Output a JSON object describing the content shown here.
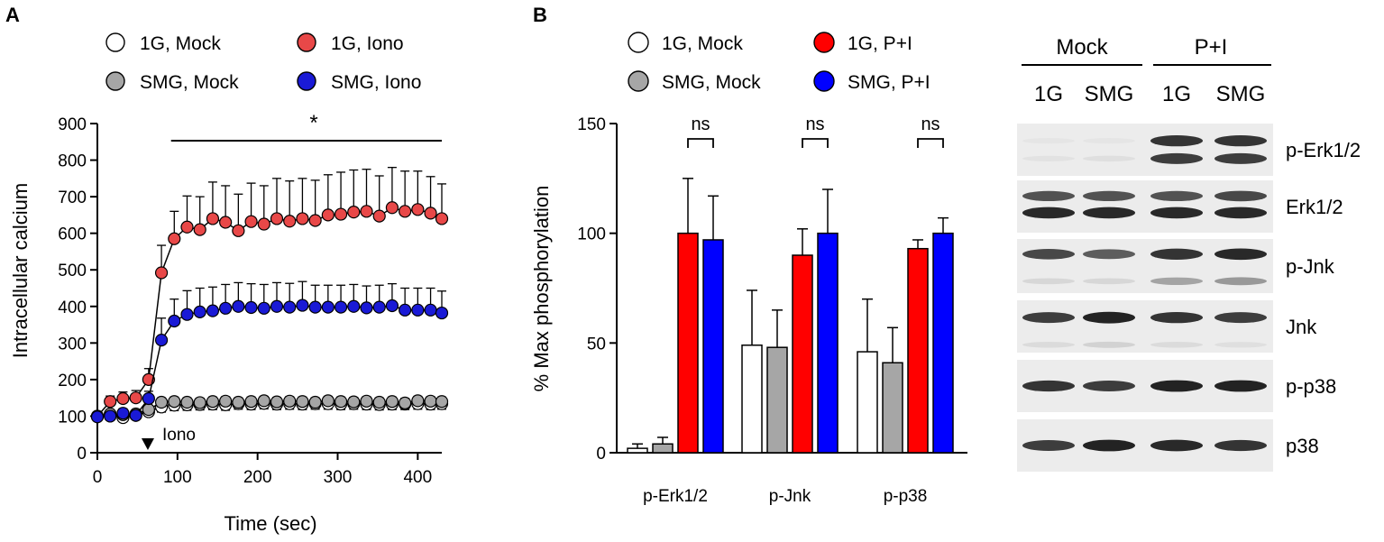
{
  "panels": {
    "a_letter": "A",
    "b_letter": "B"
  },
  "colors": {
    "mock_1g": "#ffffff",
    "mock_smg": "#a6a6a6",
    "stim_1g_marker": "#e84848",
    "stim_smg_marker": "#1a1ad6",
    "stim_1g_bar": "#ff0000",
    "stim_smg_bar": "#0000ff",
    "axis": "#000000"
  },
  "chart_data": [
    {
      "type": "line",
      "panel": "A",
      "title": "",
      "xlabel": "Time (sec)",
      "ylabel": "Intracellular calcium",
      "xlim": [
        0,
        430
      ],
      "ylim": [
        0,
        900
      ],
      "xticks": [
        0,
        100,
        200,
        300,
        400
      ],
      "yticks": [
        0,
        100,
        200,
        300,
        400,
        500,
        600,
        700,
        800,
        900
      ],
      "annotations": {
        "significance": "*",
        "significance_range": [
          92,
          430
        ],
        "stimulus_label": "Iono",
        "stimulus_time": 63
      },
      "legend": {
        "placement": "top",
        "entries": [
          {
            "label": "1G, Mock",
            "color_key": "mock_1g"
          },
          {
            "label": "1G, Iono",
            "color_key": "stim_1g_marker"
          },
          {
            "label": "SMG, Mock",
            "color_key": "mock_smg"
          },
          {
            "label": "SMG, Iono",
            "color_key": "stim_smg_marker"
          }
        ]
      },
      "x": [
        0,
        16,
        32,
        48,
        64,
        80,
        96,
        112,
        128,
        144,
        160,
        176,
        192,
        208,
        224,
        240,
        256,
        272,
        288,
        304,
        320,
        336,
        352,
        368,
        384,
        400,
        416,
        430
      ],
      "series": [
        {
          "name": "1G, Mock",
          "color_key": "mock_1g",
          "values": [
            100,
            103,
            96,
            102,
            112,
            125,
            130,
            131,
            132,
            133,
            131,
            134,
            133,
            135,
            133,
            134,
            133,
            134,
            134,
            133,
            134,
            133,
            132,
            133,
            133,
            134,
            133,
            134
          ],
          "errors": [
            7,
            9,
            10,
            10,
            12,
            14,
            15,
            15,
            15,
            15,
            15,
            15,
            15,
            15,
            15,
            15,
            15,
            15,
            15,
            15,
            15,
            15,
            15,
            15,
            15,
            15,
            15,
            15
          ]
        },
        {
          "name": "SMG, Mock",
          "color_key": "mock_smg",
          "values": [
            99,
            106,
            104,
            106,
            118,
            138,
            140,
            138,
            137,
            140,
            141,
            138,
            140,
            142,
            139,
            141,
            140,
            138,
            142,
            140,
            139,
            141,
            138,
            140,
            136,
            142,
            141,
            140
          ],
          "errors": [
            6,
            7,
            8,
            8,
            10,
            12,
            12,
            12,
            12,
            12,
            12,
            12,
            12,
            12,
            12,
            12,
            12,
            12,
            12,
            12,
            12,
            12,
            12,
            12,
            12,
            12,
            12,
            12
          ]
        },
        {
          "name": "1G, Iono",
          "color_key": "stim_1g_marker",
          "values": [
            100,
            140,
            148,
            150,
            200,
            492,
            585,
            617,
            610,
            640,
            630,
            607,
            632,
            625,
            640,
            633,
            640,
            635,
            650,
            652,
            658,
            660,
            647,
            670,
            660,
            665,
            655,
            640
          ],
          "errors": [
            8,
            15,
            18,
            20,
            30,
            75,
            75,
            85,
            90,
            100,
            100,
            100,
            105,
            105,
            110,
            110,
            110,
            110,
            110,
            115,
            115,
            115,
            110,
            110,
            110,
            105,
            100,
            95
          ]
        },
        {
          "name": "SMG, Iono",
          "color_key": "stim_smg_marker",
          "values": [
            98,
            100,
            108,
            102,
            148,
            308,
            360,
            378,
            385,
            388,
            395,
            400,
            397,
            395,
            400,
            398,
            403,
            398,
            398,
            398,
            400,
            396,
            398,
            402,
            390,
            390,
            390,
            382
          ],
          "errors": [
            6,
            10,
            12,
            12,
            20,
            60,
            60,
            65,
            65,
            65,
            65,
            65,
            65,
            65,
            65,
            65,
            65,
            60,
            60,
            60,
            60,
            60,
            60,
            60,
            60,
            60,
            60,
            60
          ]
        }
      ]
    },
    {
      "type": "bar",
      "panel": "B",
      "title": "",
      "xlabel": "",
      "ylabel": "% Max phosphorylation",
      "ylim": [
        0,
        150
      ],
      "yticks": [
        0,
        50,
        100,
        150
      ],
      "categories": [
        "p-Erk1/2",
        "p-Jnk",
        "p-p38"
      ],
      "legend": {
        "placement": "top",
        "entries": [
          {
            "label": "1G, Mock",
            "color_key": "mock_1g"
          },
          {
            "label": "1G, P+I",
            "color_key": "stim_1g_bar"
          },
          {
            "label": "SMG, Mock",
            "color_key": "mock_smg"
          },
          {
            "label": "SMG, P+I",
            "color_key": "stim_smg_bar"
          }
        ]
      },
      "series": [
        {
          "name": "1G, Mock",
          "color_key": "mock_1g",
          "values": [
            2,
            49,
            46
          ],
          "errors": [
            2,
            25,
            24
          ]
        },
        {
          "name": "SMG, Mock",
          "color_key": "mock_smg",
          "values": [
            4,
            48,
            41
          ],
          "errors": [
            3,
            17,
            16
          ]
        },
        {
          "name": "1G, P+I",
          "color_key": "stim_1g_bar",
          "values": [
            100,
            90,
            93
          ],
          "errors": [
            25,
            12,
            4
          ]
        },
        {
          "name": "SMG, P+I",
          "color_key": "stim_smg_bar",
          "values": [
            97,
            100,
            100
          ],
          "errors": [
            20,
            20,
            7
          ]
        }
      ],
      "annotations": [
        "ns",
        "ns",
        "ns"
      ]
    }
  ],
  "blot": {
    "groups": [
      "Mock",
      "P+I"
    ],
    "lanes": [
      "1G",
      "SMG",
      "1G",
      "SMG"
    ],
    "rows": [
      {
        "label": "p-Erk1/2",
        "bands": [
          {
            "rel": 0.33,
            "intensity": [
              0.03,
              0.03,
              0.9,
              0.9
            ]
          },
          {
            "rel": 0.67,
            "intensity": [
              0.04,
              0.06,
              0.85,
              0.85
            ]
          }
        ]
      },
      {
        "label": "Erk1/2",
        "bands": [
          {
            "rel": 0.3,
            "intensity": [
              0.75,
              0.75,
              0.75,
              0.8
            ]
          },
          {
            "rel": 0.62,
            "intensity": [
              0.95,
              0.95,
              0.95,
              0.95
            ]
          }
        ]
      },
      {
        "label": "p-Jnk",
        "bands": [
          {
            "rel": 0.28,
            "intensity": [
              0.8,
              0.7,
              0.9,
              0.95
            ]
          },
          {
            "rel": 0.78,
            "intensity": [
              0.1,
              0.1,
              0.35,
              0.4
            ]
          }
        ]
      },
      {
        "label": "Jnk",
        "bands": [
          {
            "rel": 0.33,
            "intensity": [
              0.85,
              0.98,
              0.9,
              0.85
            ]
          },
          {
            "rel": 0.85,
            "intensity": [
              0.08,
              0.12,
              0.08,
              0.06
            ]
          }
        ]
      },
      {
        "label": "p-p38",
        "bands": [
          {
            "rel": 0.5,
            "intensity": [
              0.9,
              0.85,
              0.98,
              0.98
            ]
          }
        ]
      },
      {
        "label": "p38",
        "bands": [
          {
            "rel": 0.5,
            "intensity": [
              0.85,
              0.98,
              0.95,
              0.9
            ]
          }
        ]
      }
    ]
  }
}
